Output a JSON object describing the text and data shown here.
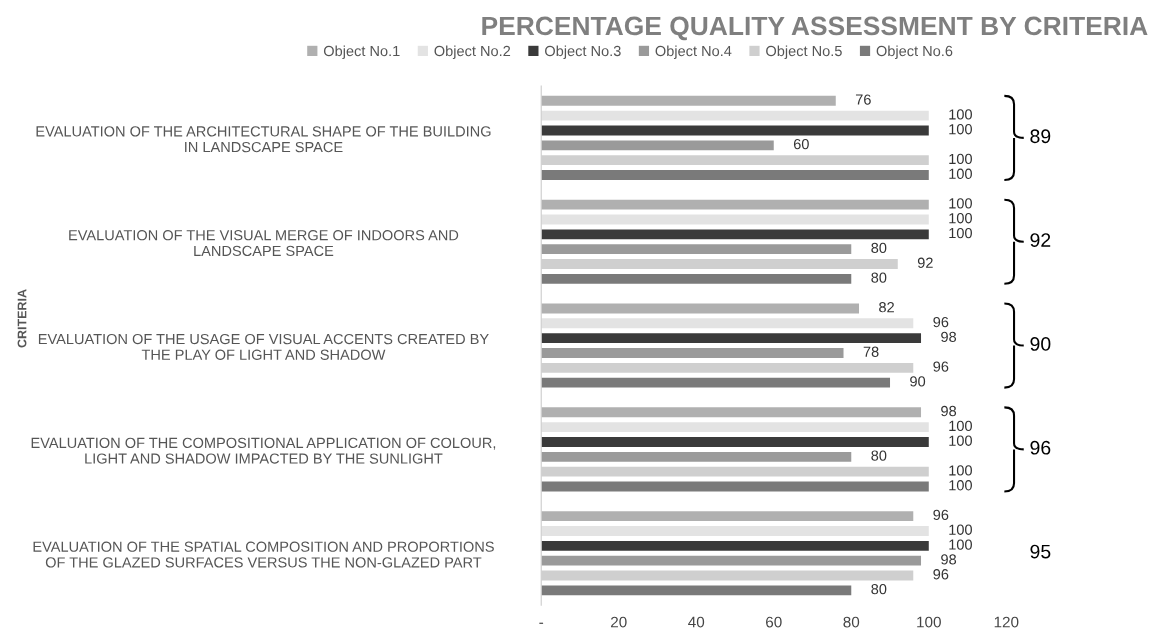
{
  "chart_data": {
    "type": "bar",
    "orientation": "horizontal",
    "title": "PERCENTAGE QUALITY ASSESSMENT BY CRITERIA",
    "ylabel": "CRITERIA",
    "categories": [
      "EVALUATION OF THE ARCHITECTURAL SHAPE OF THE BUILDING\nIN LANDSCAPE SPACE",
      "EVALUATION OF THE VISUAL MERGE OF INDOORS AND\nLANDSCAPE SPACE",
      "EVALUATION OF THE USAGE OF VISUAL ACCENTS CREATED BY\nTHE PLAY OF LIGHT AND SHADOW",
      "EVALUATION OF THE COMPOSITIONAL APPLICATION OF COLOUR,\nLIGHT AND SHADOW IMPACTED BY THE SUNLIGHT",
      "EVALUATION OF THE SPATIAL COMPOSITION AND PROPORTIONS\nOF THE GLAZED SURFACES VERSUS THE NON-GLAZED PART"
    ],
    "series": [
      {
        "name": "Object No.1",
        "color": "#b0b0b0",
        "values": [
          76,
          100,
          82,
          98,
          96
        ]
      },
      {
        "name": "Object No.2",
        "color": "#e3e3e3",
        "values": [
          100,
          100,
          96,
          100,
          100
        ]
      },
      {
        "name": "Object No.3",
        "color": "#3a3a3a",
        "values": [
          100,
          100,
          98,
          100,
          100
        ]
      },
      {
        "name": "Object No.4",
        "color": "#9a9a9a",
        "values": [
          60,
          80,
          78,
          80,
          98
        ]
      },
      {
        "name": "Object No.5",
        "color": "#cfcfcf",
        "values": [
          100,
          92,
          96,
          100,
          96
        ]
      },
      {
        "name": "Object No.6",
        "color": "#7a7a7a",
        "values": [
          100,
          80,
          90,
          100,
          80
        ]
      }
    ],
    "xlim": [
      0,
      120
    ],
    "xticks": [
      {
        "value": 0,
        "label": "-"
      },
      20,
      40,
      60,
      80,
      100,
      120
    ],
    "data_labels": true,
    "grid": false,
    "legend": "top",
    "annotations": [
      "89",
      "92",
      "90",
      "96",
      "95"
    ]
  }
}
